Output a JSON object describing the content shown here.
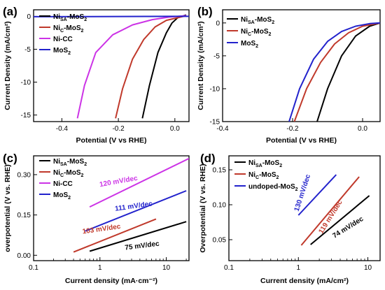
{
  "chart_data": [
    {
      "type": "line",
      "panel_label": "(a)",
      "xlabel": "Potential (V vs RHE)",
      "ylabel": "Current Density (mA/cm²)",
      "xlim": [
        -0.5,
        0.05
      ],
      "ylim": [
        -16,
        1
      ],
      "xticks": [
        -0.4,
        -0.2,
        0.0
      ],
      "xtick_labels": [
        "-0.4",
        "-0.2",
        "0.0"
      ],
      "yticks": [
        -15,
        -10,
        -5,
        0
      ],
      "ytick_labels": [
        "-15",
        "-10",
        "-5",
        "0"
      ],
      "legend_position": "top-left",
      "series": [
        {
          "name": "Ni",
          "sub": "SA",
          "suffix": "-MoS",
          "sub2": "2",
          "color": "#000000",
          "x": [
            -0.115,
            -0.09,
            -0.06,
            -0.03,
            -0.01,
            0.01,
            0.04
          ],
          "y": [
            -15.5,
            -10.5,
            -5.5,
            -2.5,
            -1.0,
            -0.2,
            0.2
          ]
        },
        {
          "name": "Ni",
          "sub": "C",
          "suffix": "-MoS",
          "sub2": "2",
          "color": "#c0392b",
          "x": [
            -0.21,
            -0.185,
            -0.15,
            -0.11,
            -0.07,
            -0.03,
            0.02,
            0.04
          ],
          "y": [
            -15.5,
            -11.0,
            -6.5,
            -3.5,
            -1.6,
            -0.6,
            -0.1,
            0.1
          ]
        },
        {
          "name": "Ni-CC",
          "sub": "",
          "suffix": "",
          "sub2": "",
          "color": "#cc33e6",
          "x": [
            -0.345,
            -0.32,
            -0.28,
            -0.22,
            -0.15,
            -0.08,
            -0.02,
            0.04
          ],
          "y": [
            -15.5,
            -10.5,
            -5.5,
            -2.8,
            -1.3,
            -0.5,
            -0.1,
            0.1
          ]
        },
        {
          "name": "MoS",
          "sub": "",
          "suffix": "",
          "sub2": "2",
          "color": "#2222cc",
          "x": [
            -0.5,
            -0.3,
            -0.1,
            0.05
          ],
          "y": [
            -0.05,
            -0.03,
            -0.01,
            0.0
          ]
        }
      ]
    },
    {
      "type": "line",
      "panel_label": "(b)",
      "xlabel": "Potential (V vs RHE)",
      "ylabel": "Current Density (mA/cm²)",
      "xlim": [
        -0.4,
        0.05
      ],
      "ylim": [
        -15,
        2
      ],
      "xticks": [
        -0.4,
        -0.2,
        0.0
      ],
      "xtick_labels": [
        "-0.4",
        "-0.2",
        "0.0"
      ],
      "yticks": [
        -15,
        -10,
        -5,
        0
      ],
      "ytick_labels": [
        "-15",
        "-10",
        "-5",
        "0"
      ],
      "legend_position": "top-left",
      "series": [
        {
          "name": "Ni",
          "sub": "SA",
          "suffix": "-MoS",
          "sub2": "2",
          "color": "#000000",
          "x": [
            -0.13,
            -0.1,
            -0.06,
            -0.02,
            0.02,
            0.05
          ],
          "y": [
            -15.0,
            -10.0,
            -5.0,
            -2.0,
            -0.5,
            0.0
          ]
        },
        {
          "name": "Ni",
          "sub": "C",
          "suffix": "-MoS",
          "sub2": "2",
          "color": "#c0392b",
          "x": [
            -0.195,
            -0.16,
            -0.12,
            -0.08,
            -0.04,
            0.0,
            0.05
          ],
          "y": [
            -15.0,
            -10.0,
            -6.0,
            -3.2,
            -1.5,
            -0.5,
            0.0
          ]
        },
        {
          "name": "MoS",
          "sub": "",
          "suffix": "",
          "sub2": "2",
          "color": "#2222cc",
          "x": [
            -0.21,
            -0.18,
            -0.14,
            -0.1,
            -0.06,
            -0.02,
            0.02,
            0.05
          ],
          "y": [
            -15.0,
            -10.0,
            -5.5,
            -2.8,
            -1.3,
            -0.5,
            -0.1,
            0.0
          ]
        }
      ]
    },
    {
      "type": "line",
      "panel_label": "(c)",
      "xlabel": "Current density (mA·cm⁻²)",
      "ylabel": "overpotential (V vs. RHE)",
      "xscale": "log",
      "xlim": [
        0.1,
        22
      ],
      "ylim": [
        -0.02,
        0.37
      ],
      "xticks": [
        0.1,
        1,
        10
      ],
      "xtick_labels": [
        "0.1",
        "1",
        "10"
      ],
      "yticks": [
        0.0,
        0.15,
        0.3
      ],
      "ytick_labels": [
        "0.00",
        "0.15",
        "0.30"
      ],
      "legend_position": "top-left",
      "series": [
        {
          "name": "Ni",
          "sub": "SA",
          "suffix": "-MoS",
          "sub2": "2",
          "color": "#000000",
          "x": [
            0.7,
            20
          ],
          "y": [
            0.015,
            0.125
          ]
        },
        {
          "name": "Ni",
          "sub": "C",
          "suffix": "-MoS",
          "sub2": "2",
          "color": "#c0392b",
          "x": [
            0.4,
            7
          ],
          "y": [
            0.012,
            0.135
          ]
        },
        {
          "name": "Ni-CC",
          "sub": "",
          "suffix": "",
          "sub2": "",
          "color": "#cc33e6",
          "x": [
            0.7,
            22
          ],
          "y": [
            0.18,
            0.36
          ]
        },
        {
          "name": "MoS",
          "sub": "",
          "suffix": "",
          "sub2": "2",
          "color": "#2222cc",
          "x": [
            0.6,
            20
          ],
          "y": [
            0.09,
            0.24
          ]
        }
      ],
      "annotations": [
        {
          "text": "120 mV/dec",
          "color": "#cc33e6",
          "x": 1.0,
          "y": 0.255,
          "rotate": -10
        },
        {
          "text": "111 mV/dec",
          "color": "#2222cc",
          "x": 1.7,
          "y": 0.165,
          "rotate": -8
        },
        {
          "text": "103 mV/dec",
          "color": "#c0392b",
          "x": 0.55,
          "y": 0.08,
          "rotate": -8
        },
        {
          "text": "75 mV/dec",
          "color": "#000000",
          "x": 2.4,
          "y": 0.02,
          "rotate": -7
        }
      ]
    },
    {
      "type": "line",
      "panel_label": "(d)",
      "xlabel": "Current density (mA/cm²)",
      "ylabel": "Overpotential (V vs. RHE)",
      "xscale": "log",
      "xlim": [
        0.1,
        15
      ],
      "ylim": [
        0.02,
        0.17
      ],
      "xticks": [
        0.1,
        1,
        10
      ],
      "xtick_labels": [
        "0.1",
        "1",
        "10"
      ],
      "yticks": [
        0.05,
        0.1,
        0.15
      ],
      "ytick_labels": [
        "0.05",
        "0.10",
        "0.15"
      ],
      "legend_position": "top-left",
      "series": [
        {
          "name": "Ni",
          "sub": "SA",
          "suffix": "-MoS",
          "sub2": "2",
          "color": "#000000",
          "x": [
            1.5,
            10.5
          ],
          "y": [
            0.043,
            0.113
          ]
        },
        {
          "name": "Ni",
          "sub": "C",
          "suffix": "-MoS",
          "sub2": "2",
          "color": "#c0392b",
          "x": [
            1.1,
            7.5
          ],
          "y": [
            0.042,
            0.14
          ]
        },
        {
          "name": "undoped-MoS",
          "sub": "",
          "suffix": "",
          "sub2": "2",
          "color": "#2222cc",
          "x": [
            1.0,
            3.5
          ],
          "y": [
            0.085,
            0.143
          ]
        }
      ],
      "annotations": [
        {
          "text": "130 mV/dec",
          "color": "#2222cc",
          "x": 1.0,
          "y": 0.09,
          "rotate": -72
        },
        {
          "text": "119 mV/dec",
          "color": "#c0392b",
          "x": 2.2,
          "y": 0.058,
          "rotate": -58
        },
        {
          "text": "74 mV/dec",
          "color": "#000000",
          "x": 3.3,
          "y": 0.052,
          "rotate": -32
        }
      ]
    }
  ]
}
